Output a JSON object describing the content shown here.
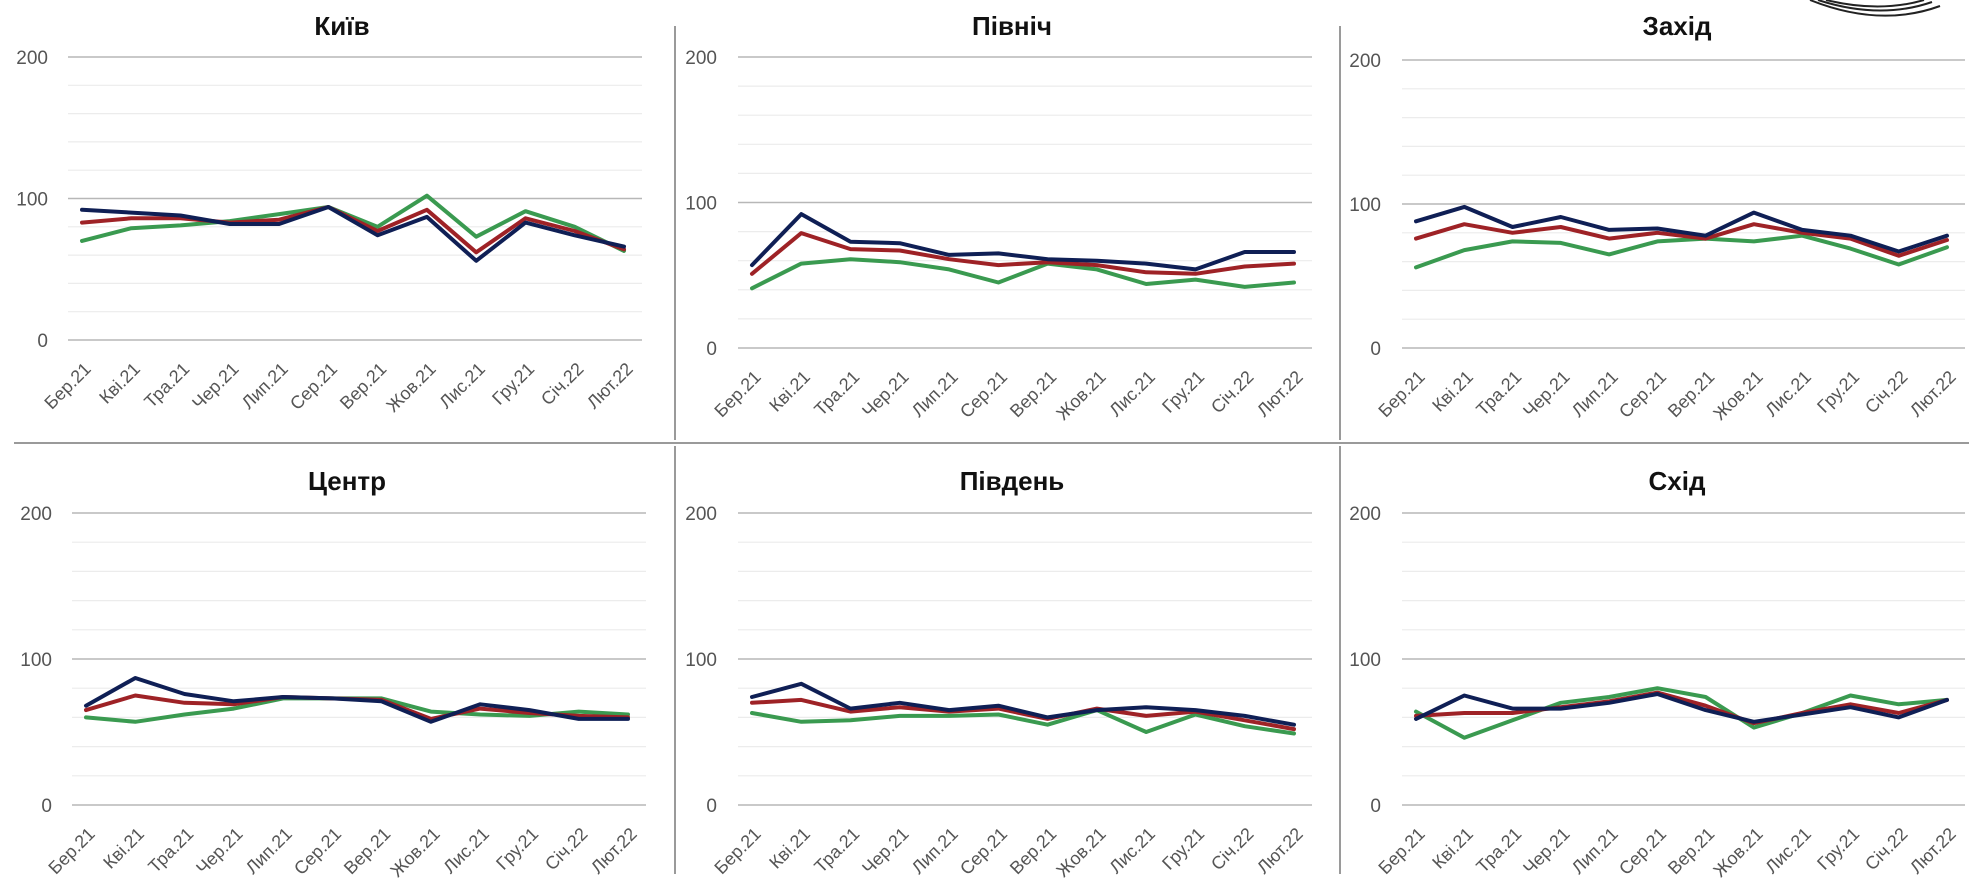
{
  "chart_data": [
    {
      "type": "line",
      "title": "Київ",
      "categories": [
        "Бер.21",
        "Кві.21",
        "Тра.21",
        "Чер.21",
        "Лип.21",
        "Сер.21",
        "Вер.21",
        "Жов.21",
        "Лис.21",
        "Гру.21",
        "Січ.22",
        "Лют.22"
      ],
      "yticks": [
        "0",
        "100",
        "200"
      ],
      "ylim": [
        0,
        200
      ],
      "grid": true,
      "series": [
        {
          "color": "#3a9a50",
          "values": [
            70,
            79,
            81,
            84,
            89,
            94,
            80,
            102,
            73,
            91,
            80,
            63
          ]
        },
        {
          "color": "#9e2226",
          "values": [
            83,
            86,
            86,
            83,
            85,
            94,
            77,
            92,
            62,
            86,
            77,
            64
          ]
        },
        {
          "color": "#0f1f55",
          "values": [
            92,
            90,
            88,
            82,
            82,
            94,
            74,
            87,
            56,
            83,
            74,
            66
          ]
        }
      ]
    },
    {
      "type": "line",
      "title": "Північ",
      "categories": [
        "Бер.21",
        "Кві.21",
        "Тра.21",
        "Чер.21",
        "Лип.21",
        "Сер.21",
        "Вер.21",
        "Жов.21",
        "Лис.21",
        "Гру.21",
        "Січ.22",
        "Лют.22"
      ],
      "yticks": [
        "0",
        "100",
        "200"
      ],
      "ylim": [
        0,
        200
      ],
      "grid": true,
      "series": [
        {
          "color": "#3a9a50",
          "values": [
            41,
            58,
            61,
            59,
            54,
            45,
            58,
            54,
            44,
            47,
            42,
            45
          ]
        },
        {
          "color": "#9e2226",
          "values": [
            51,
            79,
            68,
            67,
            61,
            57,
            59,
            57,
            52,
            51,
            56,
            58
          ]
        },
        {
          "color": "#0f1f55",
          "values": [
            57,
            92,
            73,
            72,
            64,
            65,
            61,
            60,
            58,
            54,
            66,
            66
          ]
        }
      ]
    },
    {
      "type": "line",
      "title": "Захід",
      "categories": [
        "Бер.21",
        "Кві.21",
        "Тра.21",
        "Чер.21",
        "Лип.21",
        "Сер.21",
        "Вер.21",
        "Жов.21",
        "Лис.21",
        "Гру.21",
        "Січ.22",
        "Лют.22"
      ],
      "yticks": [
        "0",
        "100",
        "200"
      ],
      "ylim": [
        0,
        200
      ],
      "grid": true,
      "series": [
        {
          "color": "#3a9a50",
          "values": [
            56,
            68,
            74,
            73,
            65,
            74,
            76,
            74,
            78,
            69,
            58,
            70
          ]
        },
        {
          "color": "#9e2226",
          "values": [
            76,
            86,
            80,
            84,
            76,
            80,
            76,
            86,
            80,
            76,
            64,
            75
          ]
        },
        {
          "color": "#0f1f55",
          "values": [
            88,
            98,
            84,
            91,
            82,
            83,
            78,
            94,
            82,
            78,
            67,
            78
          ]
        }
      ]
    },
    {
      "type": "line",
      "title": "Центр",
      "categories": [
        "Бер.21",
        "Кві.21",
        "Тра.21",
        "Чер.21",
        "Лип.21",
        "Сер.21",
        "Вер.21",
        "Жов.21",
        "Лис.21",
        "Гру.21",
        "Січ.22",
        "Лют.22"
      ],
      "yticks": [
        "0",
        "100",
        "200"
      ],
      "ylim": [
        0,
        200
      ],
      "grid": true,
      "series": [
        {
          "color": "#3a9a50",
          "values": [
            60,
            57,
            62,
            66,
            73,
            73,
            73,
            64,
            62,
            61,
            64,
            62
          ]
        },
        {
          "color": "#9e2226",
          "values": [
            65,
            75,
            70,
            69,
            74,
            73,
            72,
            59,
            66,
            63,
            61,
            60
          ]
        },
        {
          "color": "#0f1f55",
          "values": [
            68,
            87,
            76,
            71,
            74,
            73,
            71,
            57,
            69,
            65,
            59,
            59
          ]
        }
      ]
    },
    {
      "type": "line",
      "title": "Південь",
      "categories": [
        "Бер.21",
        "Кві.21",
        "Тра.21",
        "Чер.21",
        "Лип.21",
        "Сер.21",
        "Вер.21",
        "Жов.21",
        "Лис.21",
        "Гру.21",
        "Січ.22",
        "Лют.22"
      ],
      "yticks": [
        "0",
        "100",
        "200"
      ],
      "ylim": [
        0,
        200
      ],
      "grid": true,
      "series": [
        {
          "color": "#3a9a50",
          "values": [
            63,
            57,
            58,
            61,
            61,
            62,
            55,
            65,
            50,
            62,
            54,
            49
          ]
        },
        {
          "color": "#9e2226",
          "values": [
            70,
            72,
            64,
            67,
            64,
            66,
            59,
            66,
            61,
            64,
            58,
            52
          ]
        },
        {
          "color": "#0f1f55",
          "values": [
            74,
            83,
            66,
            70,
            65,
            68,
            60,
            65,
            67,
            65,
            61,
            55
          ]
        }
      ]
    },
    {
      "type": "line",
      "title": "Схід",
      "categories": [
        "Бер.21",
        "Кві.21",
        "Тра.21",
        "Чер.21",
        "Лип.21",
        "Сер.21",
        "Вер.21",
        "Жов.21",
        "Лис.21",
        "Гру.21",
        "Січ.22",
        "Лют.22"
      ],
      "yticks": [
        "0",
        "100",
        "200"
      ],
      "ylim": [
        0,
        200
      ],
      "grid": true,
      "series": [
        {
          "color": "#3a9a50",
          "values": [
            64,
            46,
            58,
            70,
            74,
            80,
            74,
            53,
            63,
            75,
            69,
            72
          ]
        },
        {
          "color": "#9e2226",
          "values": [
            61,
            63,
            63,
            67,
            71,
            77,
            68,
            56,
            63,
            69,
            63,
            72
          ]
        },
        {
          "color": "#0f1f55",
          "values": [
            59,
            75,
            66,
            66,
            70,
            76,
            65,
            57,
            62,
            67,
            60,
            72
          ]
        }
      ]
    }
  ],
  "colors": {
    "divider": "#9a9a9a",
    "grid_major": "#b7b7b7",
    "grid_minor": "#ececec"
  }
}
